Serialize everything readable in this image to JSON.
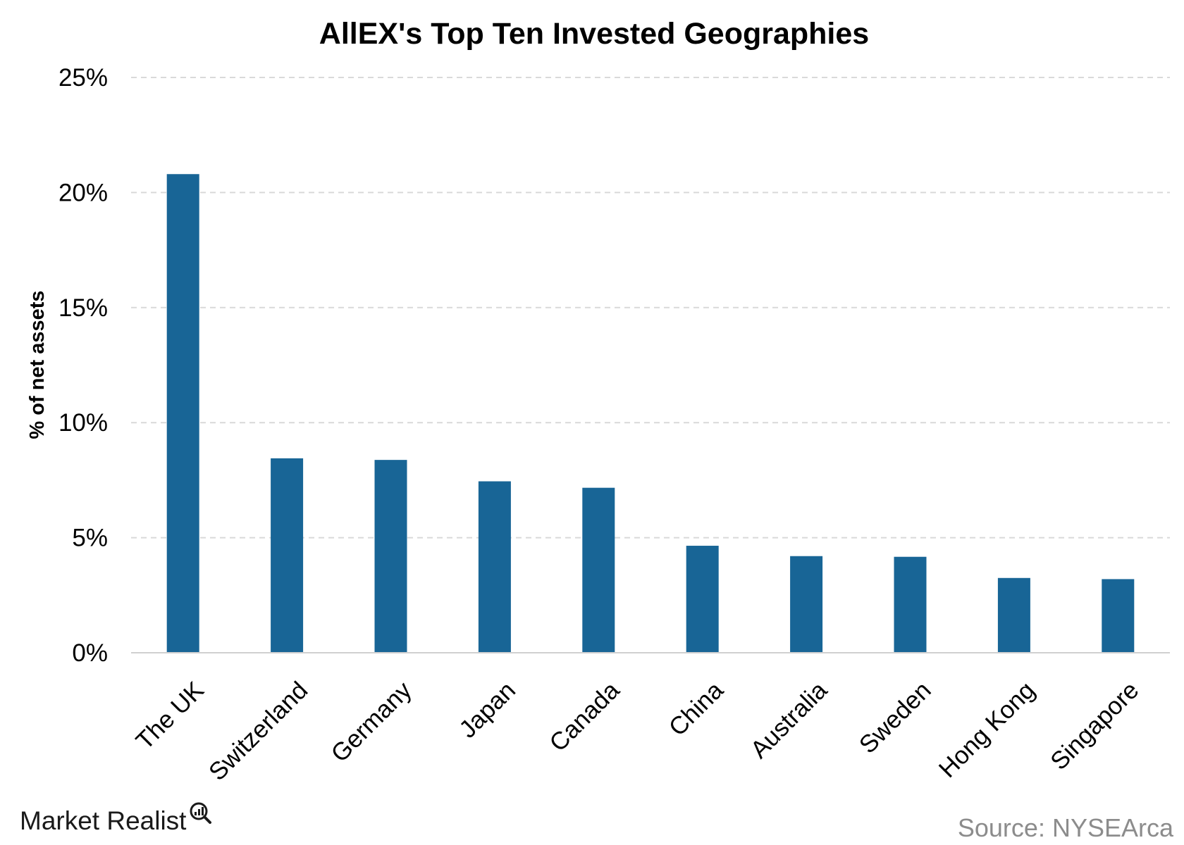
{
  "colors": {
    "bar": "#186596",
    "grid": "#d9d9d9",
    "axis": "#d0d0d0",
    "source": "#8c8c8c"
  },
  "brand": {
    "name": "Market Realist",
    "icon": "magnifier-chart-icon"
  },
  "source": "Source: NYSEArca",
  "chart_data": {
    "type": "bar",
    "title": "AllEX's Top Ten Invested Geographies",
    "xlabel": "",
    "ylabel": "% of net assets",
    "categories": [
      "The UK",
      "Switzerland",
      "Germany",
      "Japan",
      "Canada",
      "China",
      "Australia",
      "Sweden",
      "Hong Kong",
      "Singapore"
    ],
    "values": [
      20.8,
      8.45,
      8.38,
      7.45,
      7.17,
      4.65,
      4.2,
      4.17,
      3.25,
      3.2
    ],
    "ylim": [
      0,
      25
    ],
    "yticks": [
      0,
      5,
      10,
      15,
      20,
      25
    ],
    "ytick_labels": [
      "0%",
      "5%",
      "10%",
      "15%",
      "20%",
      "25%"
    ],
    "grid": true,
    "legend": "none"
  }
}
